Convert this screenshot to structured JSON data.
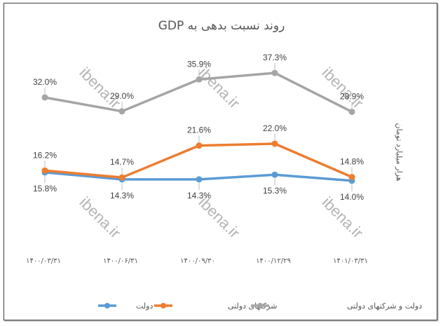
{
  "chart_data": {
    "type": "line",
    "title": "روند نسبت بدهی به GDP",
    "ylabel": "هزار میلیارد تومان",
    "xlabel": "",
    "categories": [
      "۱۴۰۰/۰۳/۳۱",
      "۱۴۰۰/۰۶/۳۱",
      "۱۴۰۰/۰۹/۳۰",
      "۱۴۰۰/۱۲/۲۹",
      "۱۴۰۱/۰۳/۳۱"
    ],
    "series": [
      {
        "name": "دولت",
        "color": "#5b9bd5",
        "values": [
          15.8,
          14.3,
          14.3,
          15.3,
          14.0
        ],
        "labels": [
          "15.8%",
          "14.3%",
          "14.3%",
          "15.3%",
          "14.0%"
        ],
        "label_position": "below"
      },
      {
        "name": "شرکتهای دولتی",
        "color": "#ed7d31",
        "values": [
          16.2,
          14.7,
          21.6,
          22.0,
          14.8
        ],
        "labels": [
          "16.2%",
          "14.7%",
          "21.6%",
          "22.0%",
          "14.8%"
        ],
        "label_position": "above"
      },
      {
        "name": "دولت و شرکتهای دولتی",
        "color": "#a5a5a5",
        "values": [
          32.0,
          29.0,
          35.9,
          37.3,
          28.9
        ],
        "labels": [
          "32.0%",
          "29.0%",
          "35.9%",
          "37.3%",
          "28.9%"
        ],
        "label_position": "above"
      }
    ],
    "y_axis_visible": false,
    "grid": false,
    "legend_position": "bottom",
    "unit": "%"
  },
  "watermark": "ibena.ir"
}
